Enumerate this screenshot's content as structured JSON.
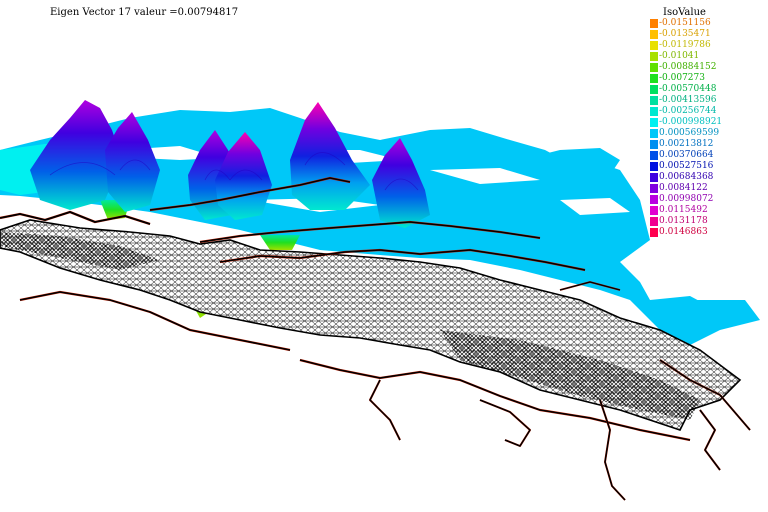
{
  "title": "Eigen  Vector 17 valeur =0.00794817",
  "legend": {
    "title": "IsoValue",
    "entries": [
      {
        "label": "-0.0151156",
        "color": "#ff8000",
        "text_color": "#e07000"
      },
      {
        "label": "-0.0135471",
        "color": "#ffc000",
        "text_color": "#d8a000"
      },
      {
        "label": "-0.0119786",
        "color": "#e8e000",
        "text_color": "#c0b800"
      },
      {
        "label": "-0.01041",
        "color": "#a8e000",
        "text_color": "#80b800"
      },
      {
        "label": "-0.00884152",
        "color": "#60e000",
        "text_color": "#40b000"
      },
      {
        "label": "-0.007273",
        "color": "#20e020",
        "text_color": "#10b010"
      },
      {
        "label": "-0.00570448",
        "color": "#00e060",
        "text_color": "#00b048"
      },
      {
        "label": "-0.00413596",
        "color": "#00e0a0",
        "text_color": "#00b080"
      },
      {
        "label": "-0.00256744",
        "color": "#00e8d0",
        "text_color": "#00b8a8"
      },
      {
        "label": "-0.000998921",
        "color": "#00f0f0",
        "text_color": "#00c0c0"
      },
      {
        "label": "0.000569599",
        "color": "#00c8f8",
        "text_color": "#0090c0"
      },
      {
        "label": "0.00213812",
        "color": "#0090f0",
        "text_color": "#0070c0"
      },
      {
        "label": "0.00370664",
        "color": "#0050e8",
        "text_color": "#0040b8"
      },
      {
        "label": "0.00527516",
        "color": "#0010e0",
        "text_color": "#0010b0"
      },
      {
        "label": "0.00684368",
        "color": "#4000e0",
        "text_color": "#3000b0"
      },
      {
        "label": "0.0084122",
        "color": "#8000e0",
        "text_color": "#6000b0"
      },
      {
        "label": "0.00998072",
        "color": "#b800e0",
        "text_color": "#9000b0"
      },
      {
        "label": "0.0115492",
        "color": "#e000d0",
        "text_color": "#b000a0"
      },
      {
        "label": "0.0131178",
        "color": "#f00090",
        "text_color": "#c00070"
      },
      {
        "label": "0.0146863",
        "color": "#ff0050",
        "text_color": "#d00040"
      }
    ]
  },
  "scene": {
    "surface_color": "#00c8f8",
    "mesh_color": "#000000",
    "boundary_color": "#c81e00"
  }
}
